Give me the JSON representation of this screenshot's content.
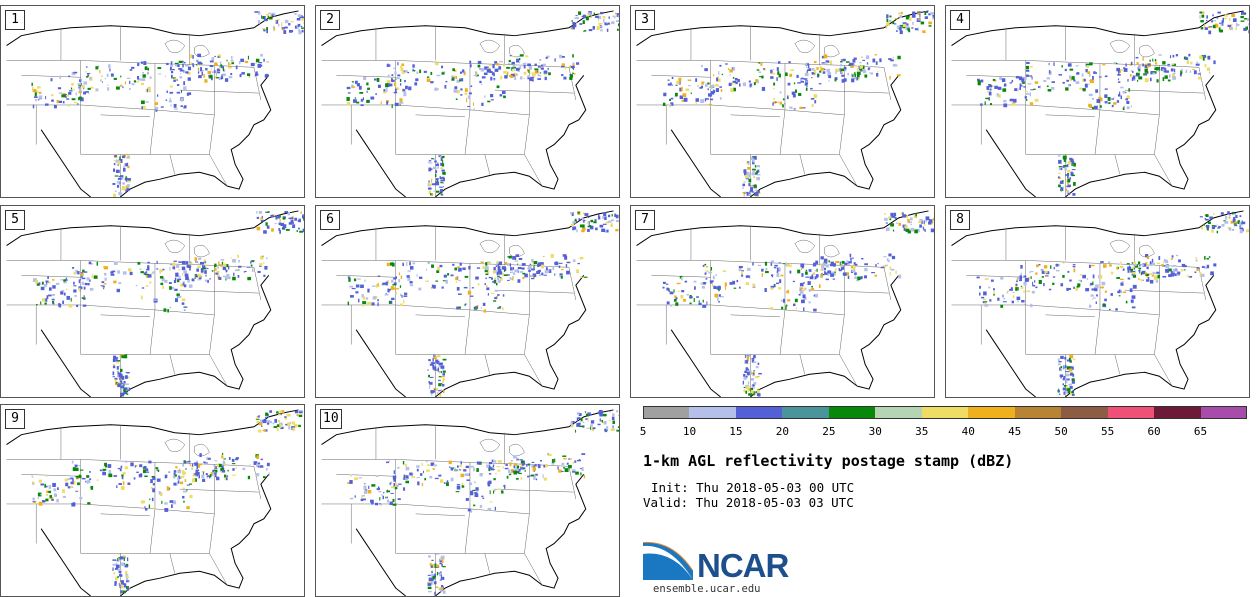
{
  "panels": [
    {
      "label": "1",
      "seed": 11
    },
    {
      "label": "2",
      "seed": 23
    },
    {
      "label": "3",
      "seed": 37
    },
    {
      "label": "4",
      "seed": 41
    },
    {
      "label": "5",
      "seed": 53
    },
    {
      "label": "6",
      "seed": 67
    },
    {
      "label": "7",
      "seed": 79
    },
    {
      "label": "8",
      "seed": 83
    },
    {
      "label": "9",
      "seed": 97
    },
    {
      "label": "10",
      "seed": 101
    }
  ],
  "colorbar": {
    "colors": [
      "#a0a0a0",
      "#b4c0ea",
      "#5460d6",
      "#4a949c",
      "#088808",
      "#b4d4b4",
      "#eedc64",
      "#eeb01c",
      "#b88434",
      "#8c5c44",
      "#ee5078",
      "#6c1a38",
      "#a84cac"
    ],
    "tick_labels": [
      "5",
      "10",
      "15",
      "20",
      "25",
      "30",
      "35",
      "40",
      "45",
      "50",
      "55",
      "60",
      "65"
    ]
  },
  "title": "1-km AGL reflectivity postage stamp (dBZ)",
  "init_text": "Init: Thu 2018-05-03 00 UTC",
  "valid_text": "Valid: Thu 2018-05-03 03 UTC",
  "logo": {
    "name": "NCAR",
    "url": "ensemble.ucar.edu"
  }
}
